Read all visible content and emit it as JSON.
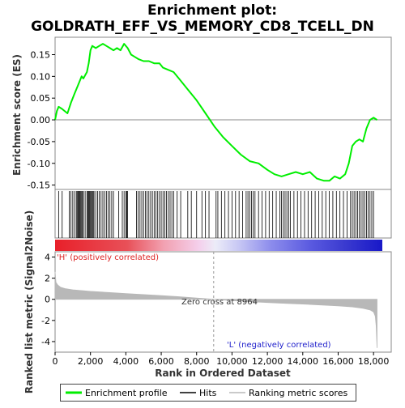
{
  "chart_data": {
    "type": "line",
    "title_line1": "Enrichment plot:",
    "title_line2": "GOLDRATH_EFF_VS_MEMORY_CD8_TCELL_DN",
    "ylabel_top": "Enrichment score (ES)",
    "ylabel_bottom": "Ranked list metric (Signal2Noise)",
    "xlabel": "Rank in Ordered Dataset",
    "xlim": [
      0,
      19000
    ],
    "x_ticks": [
      "0",
      "2,000",
      "4,000",
      "6,000",
      "8,000",
      "10,000",
      "12,000",
      "14,000",
      "16,000",
      "18,000"
    ],
    "x_tick_values": [
      0,
      2000,
      4000,
      6000,
      8000,
      10000,
      12000,
      14000,
      16000,
      18000
    ],
    "es_ylim": [
      -0.16,
      0.19
    ],
    "es_ticks": [
      "0.15",
      "0.10",
      "0.05",
      "0.00",
      "-0.05",
      "-0.10",
      "-0.15"
    ],
    "es_tick_values": [
      0.15,
      0.1,
      0.05,
      0.0,
      -0.05,
      -0.1,
      -0.15
    ],
    "metric_ylim": [
      -5,
      4.5
    ],
    "metric_ticks": [
      "4",
      "2",
      "0",
      "-2",
      "-4"
    ],
    "metric_tick_values": [
      4,
      2,
      0,
      -2,
      -4
    ],
    "enrichment_profile": {
      "x": [
        0,
        100,
        200,
        400,
        700,
        900,
        1100,
        1300,
        1500,
        1600,
        1800,
        1900,
        2000,
        2100,
        2300,
        2500,
        2700,
        2900,
        3100,
        3300,
        3500,
        3700,
        3900,
        4100,
        4300,
        4500,
        4700,
        5000,
        5300,
        5600,
        5900,
        6100,
        6400,
        6700,
        7000,
        7500,
        8000,
        8500,
        9000,
        9500,
        10000,
        10500,
        11000,
        11500,
        12000,
        12400,
        12800,
        13200,
        13600,
        14000,
        14400,
        14800,
        15200,
        15500,
        15800,
        16100,
        16400,
        16600,
        16800,
        17000,
        17200,
        17400,
        17600,
        17800,
        18000,
        18200
      ],
      "y": [
        0.0,
        0.02,
        0.03,
        0.025,
        0.015,
        0.04,
        0.06,
        0.08,
        0.1,
        0.095,
        0.11,
        0.13,
        0.16,
        0.17,
        0.165,
        0.17,
        0.175,
        0.17,
        0.165,
        0.16,
        0.165,
        0.16,
        0.175,
        0.165,
        0.15,
        0.145,
        0.14,
        0.135,
        0.135,
        0.13,
        0.13,
        0.12,
        0.115,
        0.11,
        0.095,
        0.07,
        0.045,
        0.015,
        -0.015,
        -0.04,
        -0.06,
        -0.08,
        -0.095,
        -0.1,
        -0.115,
        -0.125,
        -0.13,
        -0.125,
        -0.12,
        -0.125,
        -0.12,
        -0.135,
        -0.14,
        -0.14,
        -0.13,
        -0.135,
        -0.125,
        -0.1,
        -0.06,
        -0.05,
        -0.045,
        -0.05,
        -0.02,
        0.0,
        0.005,
        0.0
      ]
    },
    "hits": [
      200,
      400,
      800,
      900,
      1000,
      1100,
      1200,
      1250,
      1300,
      1350,
      1400,
      1450,
      1500,
      1550,
      1600,
      1700,
      1800,
      1850,
      1900,
      1950,
      2000,
      2050,
      2100,
      2150,
      2200,
      2300,
      2400,
      2500,
      2600,
      2700,
      2800,
      2900,
      3000,
      3100,
      3200,
      3300,
      3600,
      3800,
      3900,
      4000,
      4050,
      4100,
      4600,
      4700,
      4800,
      4900,
      5000,
      5100,
      5200,
      5300,
      5400,
      5500,
      5600,
      5700,
      5800,
      5900,
      6000,
      6100,
      6200,
      6300,
      6400,
      6500,
      6600,
      6700,
      6900,
      7100,
      7500,
      7700,
      8000,
      8300,
      8500,
      8700,
      9100,
      9200,
      9400,
      9600,
      9800,
      10000,
      10200,
      10400,
      10600,
      10800,
      10900,
      11000,
      11100,
      11200,
      11300,
      11500,
      11700,
      11900,
      12100,
      12300,
      12500,
      12700,
      12800,
      12900,
      13000,
      13100,
      13200,
      13300,
      13500,
      13700,
      13900,
      14100,
      14300,
      14500,
      14700,
      14900,
      15100,
      15300,
      15500,
      15700,
      15900,
      16100,
      16300,
      16500,
      16700,
      16800,
      16900,
      17000,
      17100,
      17200,
      17300,
      17400,
      17500,
      17600,
      17700,
      17800,
      17900,
      18000
    ],
    "metric_curve": {
      "x": [
        0,
        50,
        150,
        300,
        600,
        1000,
        2000,
        3000,
        4000,
        5000,
        6000,
        7000,
        8000,
        8964,
        10000,
        11000,
        12000,
        13000,
        14000,
        15000,
        16000,
        16800,
        17400,
        17800,
        18000,
        18100,
        18150,
        18200
      ],
      "y": [
        2.6,
        1.6,
        1.35,
        1.15,
        1.0,
        0.9,
        0.75,
        0.65,
        0.55,
        0.45,
        0.35,
        0.25,
        0.12,
        0.0,
        -0.12,
        -0.22,
        -0.3,
        -0.38,
        -0.45,
        -0.53,
        -0.62,
        -0.72,
        -0.85,
        -1.0,
        -1.2,
        -1.6,
        -2.5,
        -4.6
      ]
    },
    "zero_cross_label": "Zero cross at 8964",
    "zero_cross_x": 8964,
    "pos_label": "'H' (positively correlated)",
    "neg_label": "'L' (negatively correlated)",
    "legend": [
      "Enrichment profile",
      "Hits",
      "Ranking metric scores"
    ],
    "colors": {
      "enrichment": "#00ee00",
      "hits": "#000000",
      "metric": "#b8b8b8",
      "pos_text": "#dd2222",
      "neg_text": "#2222cc",
      "zero_line": "#999999"
    }
  }
}
